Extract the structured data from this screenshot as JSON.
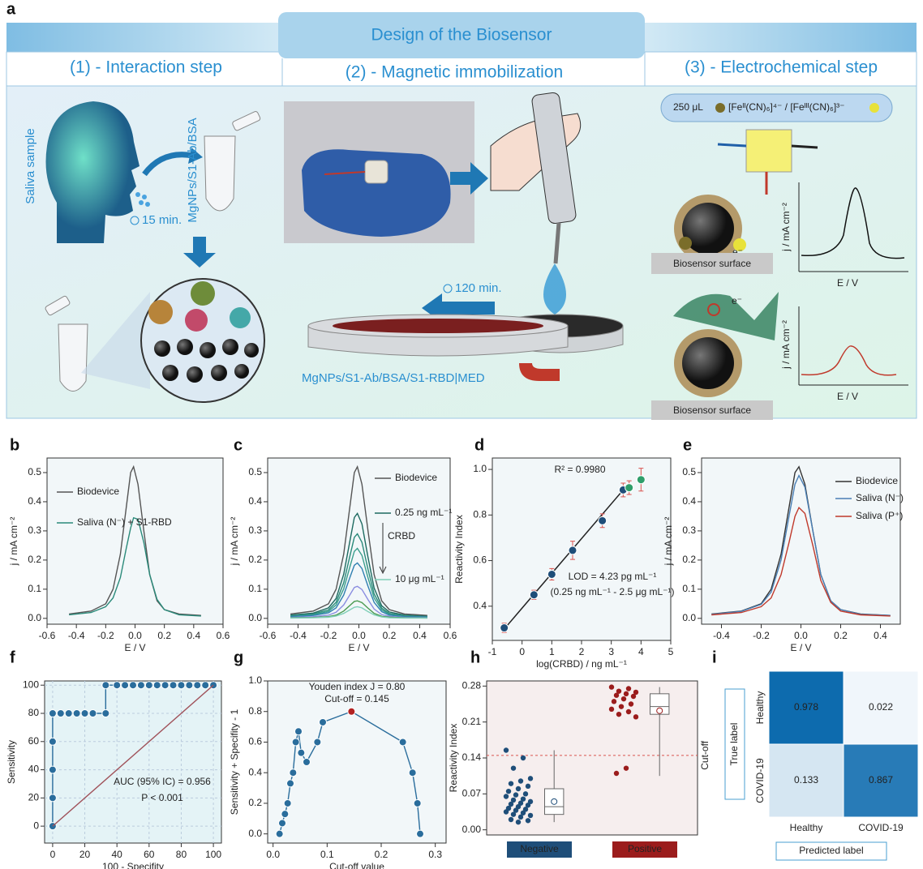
{
  "diagram": {
    "panel": "a",
    "title": "Design of the Biosensor",
    "steps": [
      "(1) - Interaction step",
      "(2) - Magnetic immobilization",
      "(3) - Electrochemical step"
    ],
    "sample": "Saliva sample",
    "tube_label": "MgNPs/S1-Ab/BSA",
    "time_1": "15 min.",
    "time_2": "120 min.",
    "electrode_label": "MgNPs/S1-Ab/BSA/S1-RBD|MED",
    "volume": "250 μL",
    "redox_probe": "[Feᴵᴵ(CN)₆]⁴⁻ / [Feᴵᴵᴵ(CN)₆]³⁻",
    "surface_labels": [
      "Biosensor surface",
      "Biosensor surface"
    ],
    "electron_labels": [
      "e⁻",
      "e⁻"
    ],
    "inset_y_labels": [
      "j / mA cm⁻²",
      "j / mA cm⁻²"
    ],
    "inset_x_labels": [
      "E / V",
      "E / V"
    ]
  },
  "chart_data": [
    {
      "type": "line",
      "panel": "b",
      "x_label": "E / V",
      "y_label": "j / mA cm⁻²",
      "xlim": [
        -0.6,
        0.6
      ],
      "xticks": [
        -0.6,
        -0.4,
        -0.2,
        {
          "value": 0,
          "label": "0.0"
        },
        0.2,
        0.4,
        0.6
      ],
      "ylim": [
        -0.02,
        0.55
      ],
      "yticks": [
        {
          "value": 0,
          "label": "0.0"
        },
        0.1,
        0.2,
        0.3,
        0.4,
        0.5
      ],
      "x": [
        -0.45,
        -0.3,
        -0.2,
        -0.15,
        -0.1,
        -0.06,
        -0.03,
        -0.01,
        0.02,
        0.06,
        0.1,
        0.15,
        0.2,
        0.3,
        0.45
      ],
      "series": [
        {
          "name": "Biodevice",
          "color": "#555555",
          "values": [
            0.015,
            0.025,
            0.05,
            0.1,
            0.22,
            0.38,
            0.5,
            0.52,
            0.46,
            0.3,
            0.15,
            0.06,
            0.03,
            0.015,
            0.01
          ]
        },
        {
          "name": "Saliva (N⁻) + S1-RBD",
          "color": "#2a8a7a",
          "values": [
            0.012,
            0.02,
            0.04,
            0.07,
            0.14,
            0.24,
            0.31,
            0.345,
            0.34,
            0.26,
            0.15,
            0.065,
            0.03,
            0.012,
            0.008
          ]
        }
      ]
    },
    {
      "type": "line",
      "panel": "c",
      "x_label": "E / V",
      "y_label": "j / mA cm⁻²",
      "annotations": [
        "CRBD"
      ],
      "xlim": [
        -0.6,
        0.6
      ],
      "xticks": [
        -0.6,
        -0.4,
        -0.2,
        {
          "value": 0,
          "label": "0.0"
        },
        0.2,
        0.4,
        0.6
      ],
      "ylim": [
        -0.02,
        0.55
      ],
      "yticks": [
        {
          "value": 0,
          "label": "0.0"
        },
        0.1,
        0.2,
        0.3,
        0.4,
        0.5
      ],
      "x": [
        -0.45,
        -0.3,
        -0.2,
        -0.15,
        -0.1,
        -0.06,
        -0.03,
        -0.01,
        0.02,
        0.06,
        0.1,
        0.15,
        0.2,
        0.3,
        0.45
      ],
      "series": [
        {
          "name": "Biodevice",
          "color": "#555555",
          "values": [
            0.015,
            0.025,
            0.05,
            0.1,
            0.22,
            0.38,
            0.5,
            0.52,
            0.46,
            0.3,
            0.15,
            0.06,
            0.03,
            0.015,
            0.01
          ]
        },
        {
          "name": "0.25 ng mL⁻¹",
          "color": "#1d6a60",
          "values": [
            0.011,
            0.018,
            0.036,
            0.068,
            0.151,
            0.263,
            0.346,
            0.36,
            0.324,
            0.209,
            0.104,
            0.043,
            0.022,
            0.011,
            0.007
          ]
        },
        {
          "color": "#2a8a7a",
          "values": [
            0.009,
            0.015,
            0.029,
            0.055,
            0.122,
            0.212,
            0.278,
            0.29,
            0.261,
            0.168,
            0.084,
            0.035,
            0.017,
            0.009,
            0.006
          ]
        },
        {
          "color": "#3a9e8c",
          "values": [
            0.007,
            0.012,
            0.024,
            0.046,
            0.101,
            0.175,
            0.23,
            0.24,
            0.216,
            0.139,
            0.07,
            0.029,
            0.014,
            0.007,
            0.005
          ]
        },
        {
          "color": "#2f7fb0",
          "values": [
            0.006,
            0.01,
            0.019,
            0.036,
            0.08,
            0.139,
            0.182,
            0.19,
            0.171,
            0.11,
            0.055,
            0.023,
            0.011,
            0.006,
            0.004
          ]
        },
        {
          "color": "#8a8ce0",
          "values": [
            0.003,
            0.006,
            0.011,
            0.021,
            0.046,
            0.08,
            0.106,
            0.11,
            0.099,
            0.064,
            0.032,
            0.013,
            0.007,
            0.003,
            0.002
          ]
        },
        {
          "color": "#4a9a50",
          "values": [
            0.002,
            0.003,
            0.006,
            0.011,
            0.025,
            0.044,
            0.058,
            0.06,
            0.054,
            0.035,
            0.017,
            0.007,
            0.004,
            0.002,
            0.001
          ]
        },
        {
          "name": "10 μg mL⁻¹",
          "color": "#7fcfb8",
          "values": [
            0.001,
            0.002,
            0.004,
            0.008,
            0.017,
            0.029,
            0.038,
            0.04,
            0.036,
            0.023,
            0.012,
            0.005,
            0.002,
            0.001,
            0.001
          ]
        }
      ]
    },
    {
      "type": "scatter",
      "panel": "d",
      "x_label": "log(CRBD) / ng mL⁻¹",
      "y_label": "Reactivity Index",
      "annotations": [
        "R² = 0.9980",
        "LOD = 4.23 pg mL⁻¹",
        "(0.25 ng mL⁻¹ - 2.5 μg mL⁻¹)"
      ],
      "xlim": [
        -1,
        5
      ],
      "xticks": [
        -1,
        0,
        1,
        2,
        3,
        4,
        5
      ],
      "ylim": [
        0.25,
        1.05
      ],
      "yticks": [
        0.4,
        0.6,
        0.8,
        {
          "value": 1,
          "label": "1.0"
        }
      ],
      "x": [
        -0.6,
        0.4,
        1,
        1.7,
        2.7,
        3.4,
        3.6,
        4
      ],
      "values": [
        0.305,
        0.45,
        0.54,
        0.645,
        0.775,
        0.91,
        0.92,
        0.955
      ],
      "errors": [
        0.02,
        0.02,
        0.025,
        0.04,
        0.03,
        0.03,
        0.03,
        0.05
      ],
      "colors": [
        "#1f4e79",
        "#1f4e79",
        "#1f4e79",
        "#1f4e79",
        "#1f4e79",
        "#1f4e79",
        "#2e9e6a",
        "#2e9e6a"
      ],
      "error_color": "#d9534f",
      "fit": {
        "color": "#222222",
        "x": [
          -0.6,
          3.4
        ],
        "values": [
          0.3,
          0.91
        ]
      }
    },
    {
      "type": "line",
      "panel": "e",
      "x_label": "E / V",
      "y_label": "j / mA cm⁻²",
      "xlim": [
        -0.5,
        0.5
      ],
      "xticks": [
        -0.4,
        -0.2,
        {
          "value": 0,
          "label": "0.0"
        },
        0.2,
        0.4
      ],
      "ylim": [
        -0.02,
        0.55
      ],
      "yticks": [
        {
          "value": 0,
          "label": "0.0"
        },
        0.1,
        0.2,
        0.3,
        0.4,
        0.5
      ],
      "x": [
        -0.45,
        -0.3,
        -0.2,
        -0.15,
        -0.1,
        -0.06,
        -0.03,
        -0.01,
        0.02,
        0.06,
        0.1,
        0.15,
        0.2,
        0.3,
        0.45
      ],
      "series": [
        {
          "name": "Biodevice",
          "color": "#333333",
          "values": [
            0.015,
            0.025,
            0.05,
            0.1,
            0.22,
            0.38,
            0.5,
            0.52,
            0.46,
            0.3,
            0.15,
            0.06,
            0.03,
            0.015,
            0.01
          ]
        },
        {
          "name": "Saliva (N⁻)",
          "color": "#4a7fb5",
          "values": [
            0.014,
            0.024,
            0.048,
            0.09,
            0.2,
            0.35,
            0.46,
            0.49,
            0.45,
            0.3,
            0.15,
            0.06,
            0.03,
            0.014,
            0.01
          ]
        },
        {
          "name": "Saliva (P⁺)",
          "color": "#c0392b",
          "values": [
            0.012,
            0.02,
            0.04,
            0.07,
            0.15,
            0.26,
            0.35,
            0.38,
            0.36,
            0.25,
            0.13,
            0.055,
            0.025,
            0.012,
            0.008
          ]
        }
      ]
    },
    {
      "type": "line",
      "panel": "f",
      "x_label": "100 - Specifity",
      "y_label": "Sensitivity",
      "grid": true,
      "annotations": [
        "AUC (95% IC) = 0.956",
        "P < 0.001"
      ],
      "xlim": [
        -5,
        105
      ],
      "xticks": [
        0,
        20,
        40,
        60,
        80,
        100
      ],
      "ylim": [
        -12,
        103
      ],
      "yticks": [
        0,
        20,
        40,
        60,
        80,
        100
      ],
      "x": [
        0,
        0,
        0,
        0,
        0,
        5,
        10,
        15,
        20,
        25,
        33,
        33,
        40,
        45,
        50,
        55,
        60,
        65,
        70,
        75,
        80,
        85,
        90,
        95,
        100
      ],
      "series": [
        {
          "color": "#2a6d9c",
          "marker": true,
          "values": [
            0,
            20,
            40,
            60,
            80,
            80,
            80,
            80,
            80,
            80,
            80,
            100,
            100,
            100,
            100,
            100,
            100,
            100,
            100,
            100,
            100,
            100,
            100,
            100,
            100
          ]
        },
        {
          "color": "#a0525a",
          "x": [
            0,
            100
          ],
          "values": [
            0,
            100
          ]
        }
      ]
    },
    {
      "type": "line",
      "panel": "g",
      "x_label": "Cut-off value",
      "y_label": "Sensitivity + Specifity - 1",
      "annotations": [
        "Youden index J = 0.80",
        "Cut-off = 0.145"
      ],
      "xlim": [
        -0.01,
        0.32
      ],
      "xticks": [
        {
          "value": 0,
          "label": "0.0"
        },
        0.1,
        0.2,
        0.3
      ],
      "ylim": [
        -0.06,
        1
      ],
      "yticks": [
        {
          "value": 0,
          "label": "0.0"
        },
        0.2,
        0.4,
        0.6,
        0.8,
        {
          "value": 1,
          "label": "1.0"
        }
      ],
      "x": [
        0.012,
        0.017,
        0.022,
        0.027,
        0.032,
        0.037,
        0.042,
        0.047,
        0.052,
        0.062,
        0.082,
        0.092,
        0.145,
        0.24,
        0.258,
        0.267,
        0.272
      ],
      "series": [
        {
          "color": "#2a6d9c",
          "marker": true,
          "values": [
            0,
            0.07,
            0.13,
            0.2,
            0.33,
            0.4,
            0.6,
            0.67,
            0.53,
            0.47,
            0.6,
            0.73,
            0.8,
            0.6,
            0.4,
            0.2,
            0
          ]
        },
        {
          "color": "#b22222",
          "marker": true,
          "x": [
            0.145
          ],
          "values": [
            0.8
          ]
        }
      ]
    },
    {
      "type": "box",
      "panel": "h",
      "y_label": "Reactivity Index",
      "cutoff": 0.145,
      "cutoff_label": "Cut-off",
      "categories": [
        "Negative",
        "Positive"
      ],
      "colors": [
        "#1f4e79",
        "#9b1c1c"
      ],
      "ylim": [
        -0.01,
        0.29
      ],
      "yticks": [
        {
          "value": 0,
          "label": "0.00"
        },
        0.07,
        0.14,
        0.21,
        0.28
      ],
      "points": [
        [
          0.155,
          0.14,
          0.12,
          0.1,
          0.095,
          0.09,
          0.085,
          0.08,
          0.075,
          0.07,
          0.068,
          0.065,
          0.06,
          0.058,
          0.055,
          0.052,
          0.05,
          0.048,
          0.045,
          0.042,
          0.04,
          0.038,
          0.035,
          0.033,
          0.03,
          0.028,
          0.025,
          0.02,
          0.018,
          0.015
        ],
        [
          0.278,
          0.275,
          0.27,
          0.268,
          0.265,
          0.262,
          0.26,
          0.255,
          0.25,
          0.245,
          0.24,
          0.235,
          0.23,
          0.225,
          0.22,
          0.12,
          0.11
        ]
      ],
      "boxes": [
        {
          "whislo": 0.015,
          "q1": 0.03,
          "med": 0.045,
          "q3": 0.08,
          "whishi": 0.155,
          "mean": 0.055
        },
        {
          "whislo": 0.105,
          "q1": 0.225,
          "med": 0.24,
          "q3": 0.265,
          "whishi": 0.278,
          "mean": 0.232
        }
      ]
    },
    {
      "type": "heatmap",
      "panel": "i",
      "x_label": "Predicted label",
      "y_label": "True label",
      "rows": [
        "Healthy",
        "COVID-19"
      ],
      "columns": [
        "Healthy",
        "COVID-19"
      ],
      "values": [
        [
          0.978,
          0.022
        ],
        [
          0.133,
          0.867
        ]
      ],
      "colors": [
        "#f5f9fd",
        "#0868ac"
      ]
    }
  ]
}
